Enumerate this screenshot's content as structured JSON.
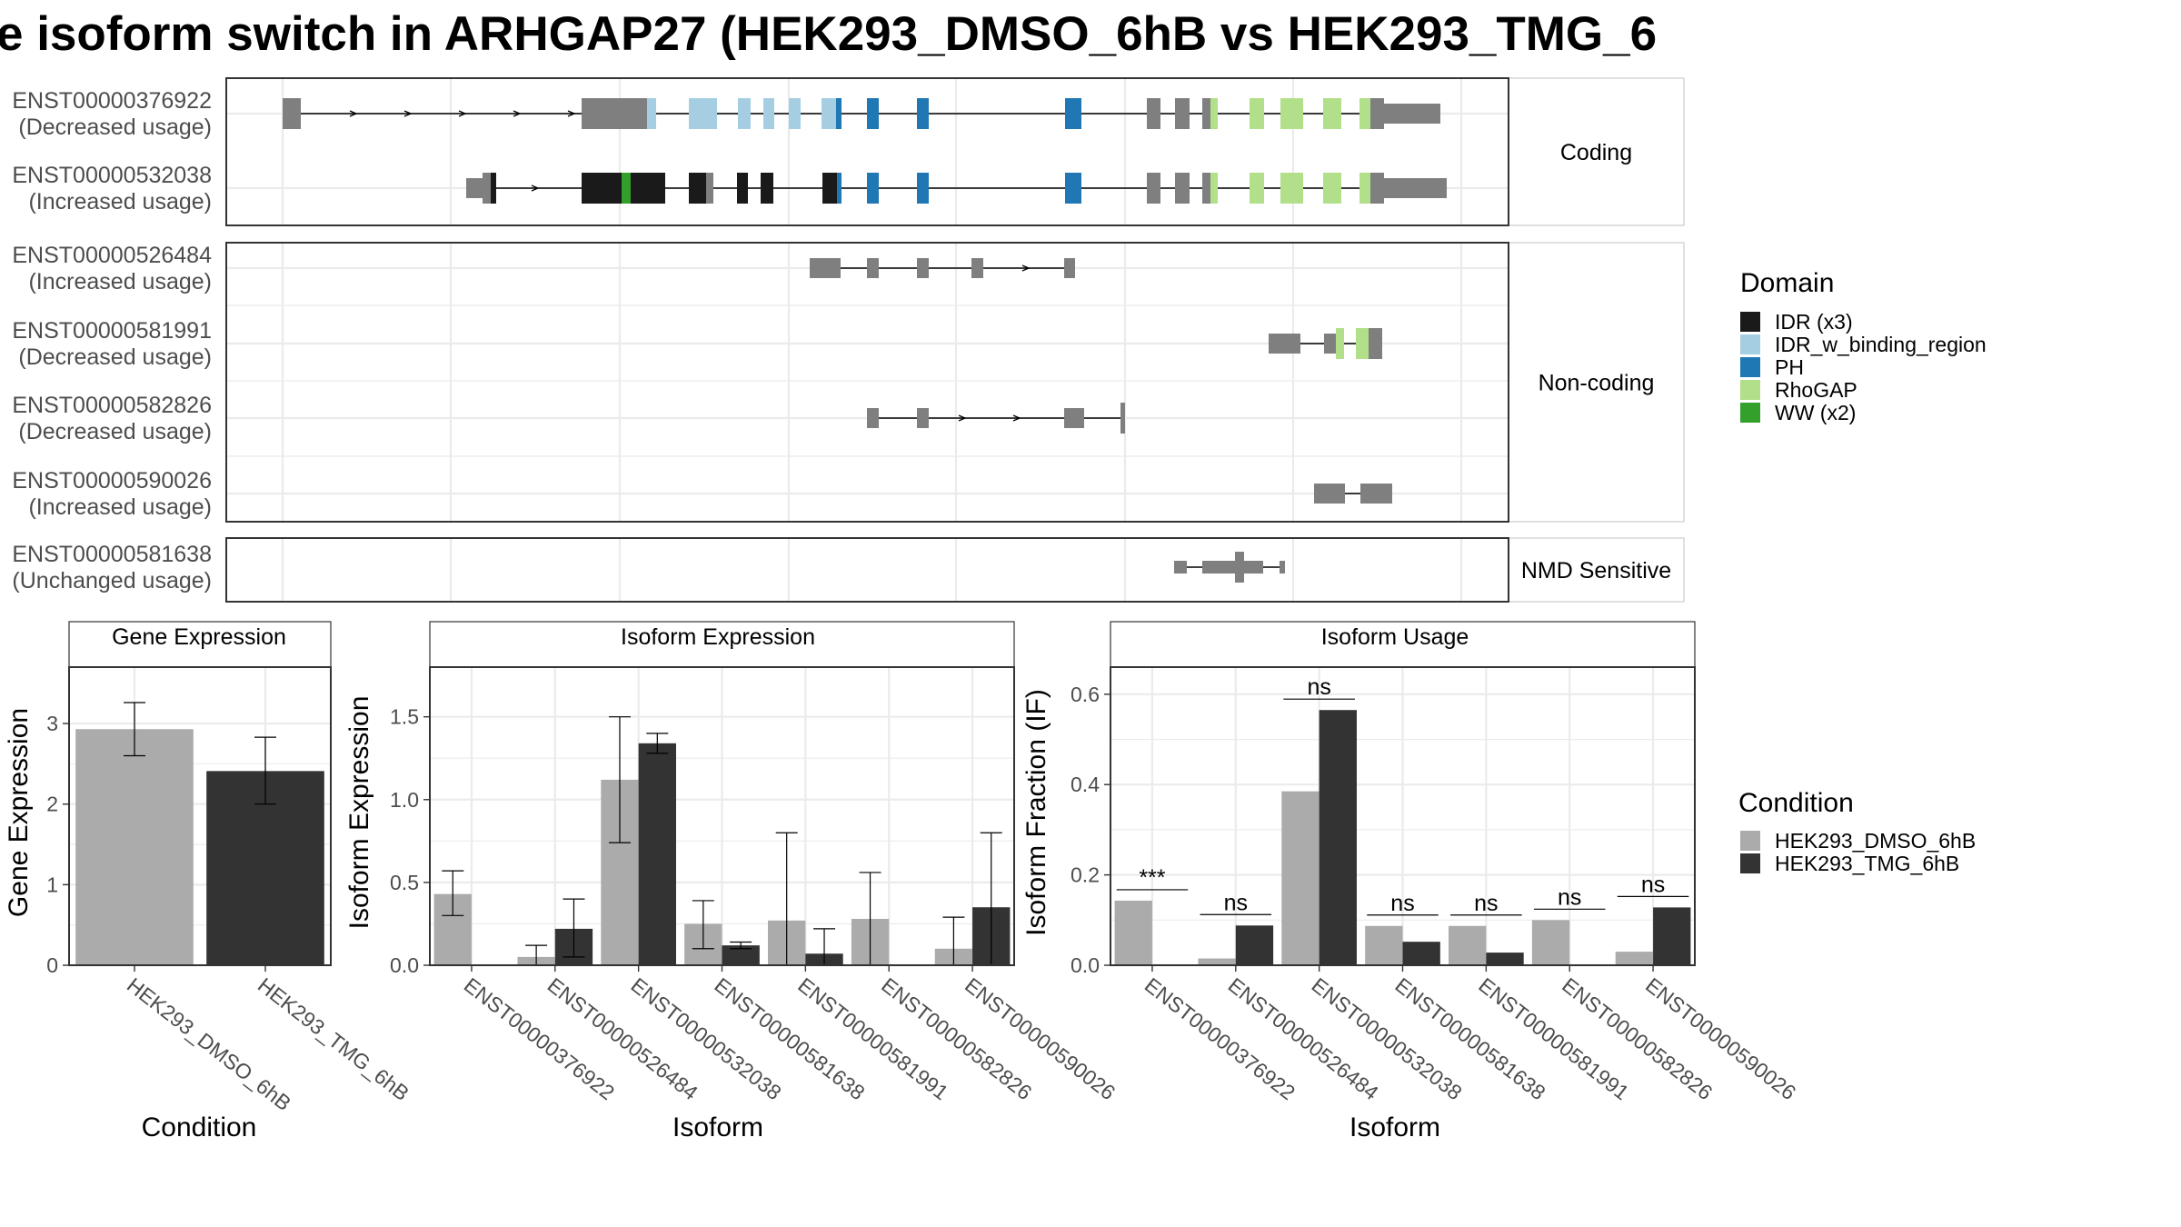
{
  "title": "e isoform switch in ARHGAP27 (HEK293_DMSO_6hB vs HEK293_TMG_6",
  "colors": {
    "exon": "#7F7F7F",
    "IDR": "#1A1A1A",
    "IDR_w_binding_region": "#A6CEE3",
    "PH": "#1F78B4",
    "RhoGAP": "#B2DF8A",
    "WW": "#33A02C",
    "dmso": "#ABABAB",
    "tmg": "#333333",
    "grid": "#EBEBEB"
  },
  "structure": {
    "panels": [
      {
        "label": "Coding",
        "transcripts": [
          {
            "id": "ENST00000376922",
            "usage": "(Decreased usage)"
          },
          {
            "id": "ENST00000532038",
            "usage": "(Increased usage)"
          }
        ]
      },
      {
        "label": "Non-coding",
        "transcripts": [
          {
            "id": "ENST00000526484",
            "usage": "(Increased usage)"
          },
          {
            "id": "ENST00000581991",
            "usage": "(Decreased usage)"
          },
          {
            "id": "ENST00000582826",
            "usage": "(Decreased usage)"
          },
          {
            "id": "ENST00000590026",
            "usage": "(Increased usage)"
          }
        ]
      },
      {
        "label": "NMD Sensitive",
        "transcripts": [
          {
            "id": "ENST00000581638",
            "usage": "(Unchanged usage)"
          }
        ]
      }
    ]
  },
  "legend_domain": {
    "title": "Domain",
    "items": [
      {
        "label": "IDR (x3)",
        "key": "IDR"
      },
      {
        "label": "IDR_w_binding_region",
        "key": "IDR_w_binding_region"
      },
      {
        "label": "PH",
        "key": "PH"
      },
      {
        "label": "RhoGAP",
        "key": "RhoGAP"
      },
      {
        "label": "WW (x2)",
        "key": "WW"
      }
    ]
  },
  "legend_condition": {
    "title": "Condition",
    "items": [
      {
        "label": "HEK293_DMSO_6hB",
        "key": "dmso"
      },
      {
        "label": "HEK293_TMG_6hB",
        "key": "tmg"
      }
    ]
  },
  "chart_data": [
    {
      "type": "bar",
      "title": "Gene Expression",
      "xlabel": "Condition",
      "ylabel": "Gene Expression",
      "ylim": [
        0,
        3.7
      ],
      "yticks": [
        "0",
        "1",
        "2",
        "3"
      ],
      "categories": [
        "HEK293_DMSO_6hB",
        "HEK293_TMG_6hB"
      ],
      "values": [
        2.93,
        2.41
      ],
      "err_low": [
        2.6,
        2.0
      ],
      "err_high": [
        3.26,
        2.83
      ]
    },
    {
      "type": "bar",
      "title": "Isoform Expression",
      "xlabel": "Isoform",
      "ylabel": "Isoform Expression",
      "ylim": [
        0,
        1.8
      ],
      "yticks": [
        "0.0",
        "0.5",
        "1.0",
        "1.5"
      ],
      "categories": [
        "ENST00000376922",
        "ENST00000526484",
        "ENST00000532038",
        "ENST00000581638",
        "ENST00000581991",
        "ENST00000582826",
        "ENST00000590026"
      ],
      "series": [
        {
          "name": "HEK293_DMSO_6hB",
          "values": [
            0.43,
            0.05,
            1.12,
            0.25,
            0.27,
            0.28,
            0.1
          ],
          "err_low": [
            0.3,
            0.0,
            0.74,
            0.1,
            0.0,
            0.0,
            0.0
          ],
          "err_high": [
            0.57,
            0.12,
            1.5,
            0.39,
            0.8,
            0.56,
            0.29
          ]
        },
        {
          "name": "HEK293_TMG_6hB",
          "values": [
            0.0,
            0.22,
            1.34,
            0.12,
            0.07,
            0.0,
            0.35
          ],
          "err_low": [
            0.0,
            0.05,
            1.28,
            0.1,
            0.0,
            0.0,
            0.0
          ],
          "err_high": [
            0.0,
            0.4,
            1.4,
            0.14,
            0.22,
            0.0,
            0.8
          ]
        }
      ]
    },
    {
      "type": "bar",
      "title": "Isoform Usage",
      "xlabel": "Isoform",
      "ylabel": "Isoform Fraction (IF)",
      "ylim": [
        0,
        0.66
      ],
      "yticks": [
        "0.0",
        "0.2",
        "0.4",
        "0.6"
      ],
      "categories": [
        "ENST00000376922",
        "ENST00000526484",
        "ENST00000532038",
        "ENST00000581638",
        "ENST00000581991",
        "ENST00000582826",
        "ENST00000590026"
      ],
      "significance": [
        "***",
        "ns",
        "ns",
        "ns",
        "ns",
        "ns",
        "ns"
      ],
      "series": [
        {
          "name": "HEK293_DMSO_6hB",
          "values": [
            0.143,
            0.015,
            0.385,
            0.087,
            0.087,
            0.1,
            0.03
          ]
        },
        {
          "name": "HEK293_TMG_6hB",
          "values": [
            0.0,
            0.088,
            0.565,
            0.052,
            0.028,
            0.0,
            0.128
          ]
        }
      ]
    }
  ]
}
